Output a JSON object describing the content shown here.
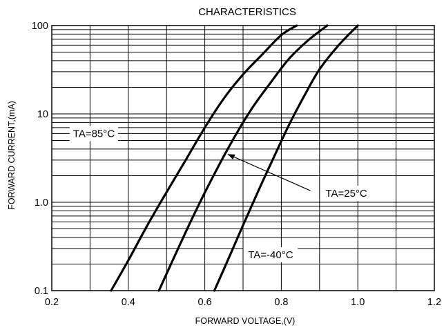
{
  "chart_data": {
    "type": "line",
    "title": "CHARACTERISTICS",
    "xlabel": "FORWARD VOLTAGE,(V)",
    "ylabel": "FORWARD CURRENT,(mA)",
    "xlim": [
      0.2,
      1.2
    ],
    "ylim": [
      0.1,
      100
    ],
    "yscale": "log",
    "grid": true,
    "x_ticks": [
      {
        "value": 0.2,
        "label": "0.2"
      },
      {
        "value": 0.4,
        "label": "0.4"
      },
      {
        "value": 0.6,
        "label": "0.6"
      },
      {
        "value": 0.8,
        "label": "0.8"
      },
      {
        "value": 1.0,
        "label": "1.0"
      },
      {
        "value": 1.2,
        "label": "1.2"
      }
    ],
    "y_ticks": [
      {
        "value": 0.1,
        "label": "0.1"
      },
      {
        "value": 1,
        "label": "1.0"
      },
      {
        "value": 10,
        "label": "10"
      },
      {
        "value": 100,
        "label": "100"
      }
    ],
    "series": [
      {
        "name": "TA=85°C",
        "x": [
          0.355,
          0.4,
          0.45,
          0.5,
          0.55,
          0.6,
          0.65,
          0.7,
          0.75,
          0.8,
          0.84
        ],
        "y": [
          0.1,
          0.22,
          0.55,
          1.3,
          3.0,
          7.0,
          15,
          28,
          47,
          78,
          100
        ]
      },
      {
        "name": "TA=25°C",
        "x": [
          0.48,
          0.52,
          0.57,
          0.62,
          0.67,
          0.72,
          0.77,
          0.82,
          0.87,
          0.92
        ],
        "y": [
          0.1,
          0.24,
          0.7,
          1.9,
          4.8,
          11,
          22,
          42,
          68,
          100
        ]
      },
      {
        "name": "TA=-40°C",
        "x": [
          0.625,
          0.66,
          0.7,
          0.74,
          0.78,
          0.82,
          0.86,
          0.9,
          0.95,
          1.0
        ],
        "y": [
          0.1,
          0.22,
          0.55,
          1.35,
          3.2,
          7.5,
          16,
          32,
          60,
          100
        ]
      }
    ],
    "annotations": [
      {
        "text": "TA=85°C",
        "x": 0.31,
        "y": 6.0
      },
      {
        "text": "TA=25°C",
        "x": 0.97,
        "y": 1.26,
        "arrow_to": {
          "x": 0.66,
          "y": 3.5
        }
      },
      {
        "text": "TA=-40°C",
        "x": 0.772,
        "y": 0.255
      }
    ]
  }
}
